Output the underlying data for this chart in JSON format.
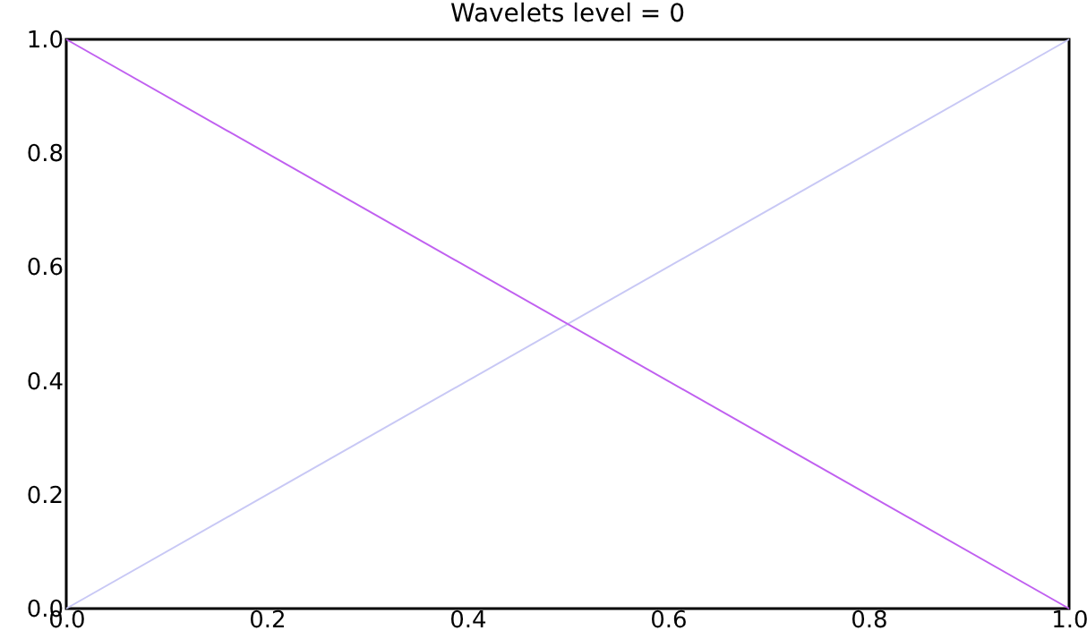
{
  "chart_data": {
    "type": "line",
    "title": "Wavelets level = 0",
    "x": [
      0,
      1
    ],
    "series": [
      {
        "color": "#c8c8f5",
        "values": [
          0,
          1
        ]
      },
      {
        "color": "#c060f0",
        "values": [
          1,
          0
        ]
      }
    ],
    "xlim": [
      0,
      1
    ],
    "ylim": [
      0,
      1
    ],
    "xticks": [
      {
        "value": 0,
        "label": "0.0"
      },
      {
        "value": 0.2,
        "label": "0.2"
      },
      {
        "value": 0.4,
        "label": "0.4"
      },
      {
        "value": 0.6,
        "label": "0.6"
      },
      {
        "value": 0.8,
        "label": "0.8"
      },
      {
        "value": 1,
        "label": "1.0"
      }
    ],
    "yticks": [
      {
        "value": 0,
        "label": "0.0"
      },
      {
        "value": 0.2,
        "label": "0.2"
      },
      {
        "value": 0.4,
        "label": "0.4"
      },
      {
        "value": 0.6,
        "label": "0.6"
      },
      {
        "value": 0.8,
        "label": "0.8"
      },
      {
        "value": 1,
        "label": "1.0"
      }
    ],
    "grid": false,
    "marker": "none",
    "line_style": "solid"
  }
}
